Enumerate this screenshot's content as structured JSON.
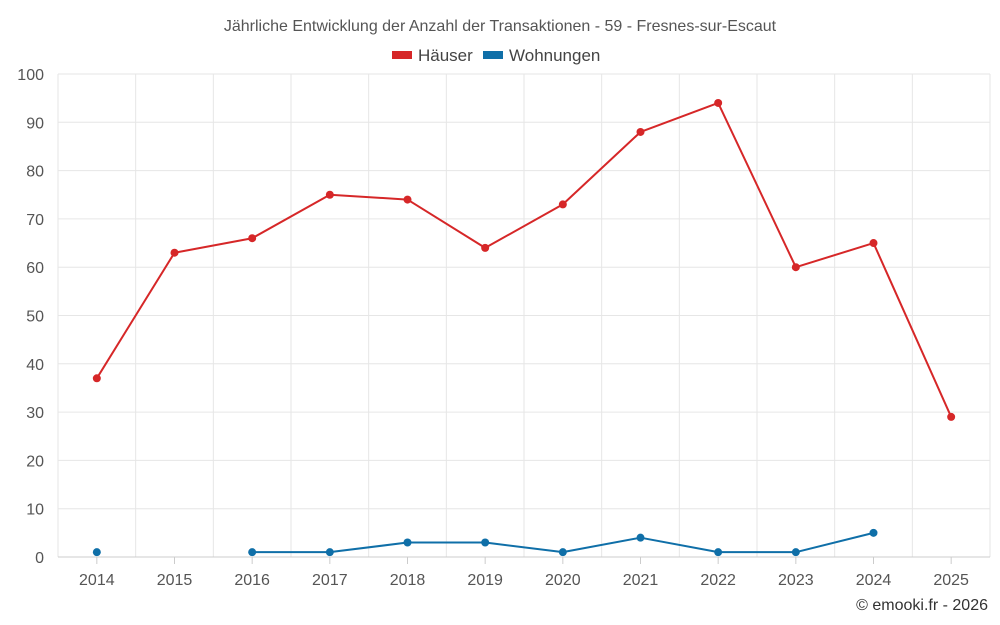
{
  "chart_data": {
    "type": "line",
    "title": "Jährliche Entwicklung der Anzahl der Transaktionen - 59 - Fresnes-sur-Escaut",
    "categories": [
      "2014",
      "2015",
      "2016",
      "2017",
      "2018",
      "2019",
      "2020",
      "2021",
      "2022",
      "2023",
      "2024",
      "2025"
    ],
    "series": [
      {
        "name": "Häuser",
        "color": "#d62728",
        "values": [
          37,
          63,
          66,
          75,
          74,
          64,
          73,
          88,
          94,
          60,
          65,
          29
        ]
      },
      {
        "name": "Wohnungen",
        "color": "#0f6fa8",
        "values": [
          1,
          null,
          1,
          1,
          3,
          3,
          1,
          4,
          1,
          1,
          5,
          null
        ]
      }
    ],
    "ylim": [
      0,
      100
    ],
    "yticks": [
      "0",
      "10",
      "20",
      "30",
      "40",
      "50",
      "60",
      "70",
      "80",
      "90",
      "100"
    ],
    "grid": true,
    "legend_position": "top-center",
    "xlabel": "",
    "ylabel": ""
  },
  "credit": "© emooki.fr - 2026"
}
